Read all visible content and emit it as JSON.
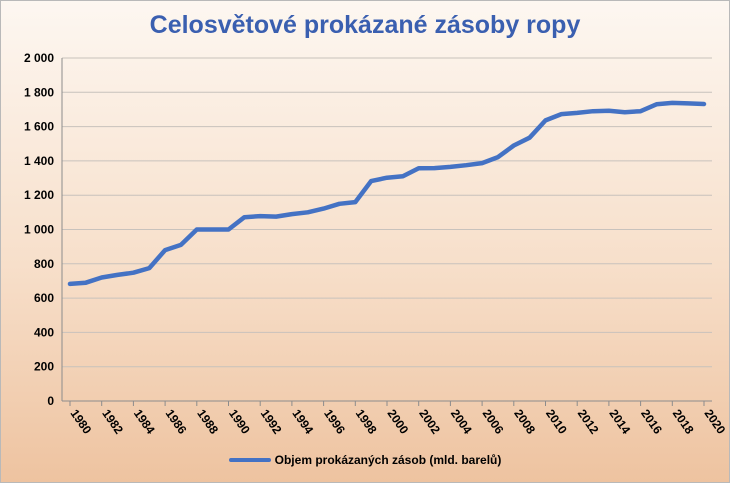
{
  "chart_data": {
    "type": "line",
    "title": "Celosvětové prokázané zásoby ropy",
    "xlabel": "",
    "ylabel": "",
    "ylim": [
      0,
      2000
    ],
    "y_ticks": [
      0,
      200,
      400,
      600,
      800,
      1000,
      1200,
      1400,
      1600,
      1800,
      2000
    ],
    "y_tick_labels": [
      "0",
      "200",
      "400",
      "600",
      "800",
      "1 000",
      "1 200",
      "1 400",
      "1 600",
      "1 800",
      "2 000"
    ],
    "x_tick_labels": [
      "1980",
      "1982",
      "1984",
      "1986",
      "1988",
      "1990",
      "1992",
      "1994",
      "1996",
      "1998",
      "2000",
      "2002",
      "2004",
      "2006",
      "2008",
      "2010",
      "2012",
      "2014",
      "2016",
      "2018",
      "2020"
    ],
    "x": [
      1980,
      1981,
      1982,
      1983,
      1984,
      1985,
      1986,
      1987,
      1988,
      1989,
      1990,
      1991,
      1992,
      1993,
      1994,
      1995,
      1996,
      1997,
      1998,
      1999,
      2000,
      2001,
      2002,
      2003,
      2004,
      2005,
      2006,
      2007,
      2008,
      2009,
      2010,
      2011,
      2012,
      2013,
      2014,
      2015,
      2016,
      2017,
      2018,
      2019,
      2020
    ],
    "grid": true,
    "legend_position": "bottom",
    "series": [
      {
        "name": "Objem prokázaných zásob (mld. barelů)",
        "color": "#4472c4",
        "values": [
          683,
          690,
          720,
          735,
          748,
          775,
          880,
          910,
          1000,
          1000,
          1000,
          1072,
          1078,
          1075,
          1090,
          1100,
          1122,
          1150,
          1160,
          1282,
          1302,
          1310,
          1357,
          1358,
          1365,
          1375,
          1387,
          1422,
          1490,
          1535,
          1636,
          1673,
          1680,
          1690,
          1693,
          1684,
          1690,
          1730,
          1738,
          1735,
          1732
        ]
      }
    ]
  }
}
